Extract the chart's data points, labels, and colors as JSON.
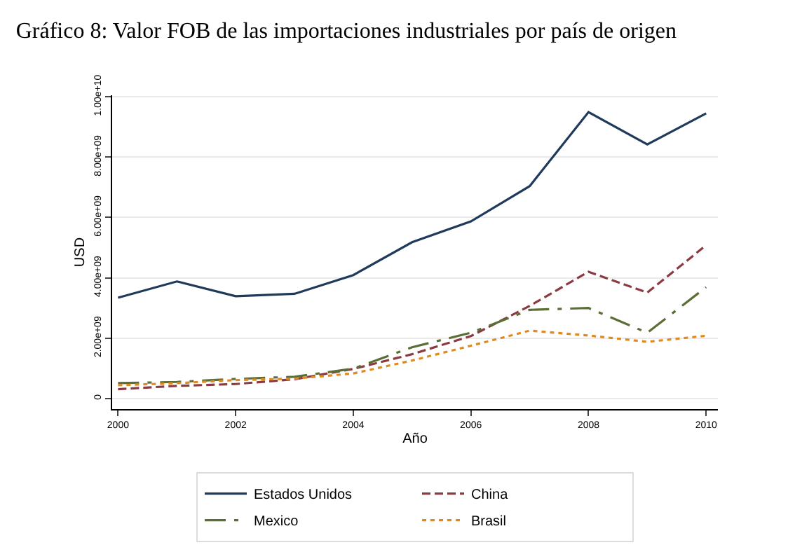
{
  "chart_data": {
    "type": "line",
    "title": "Gráfico 8: Valor FOB de las importaciones industriales por país de origen",
    "xlabel": "Año",
    "ylabel": "USD",
    "x": [
      2000,
      2001,
      2002,
      2003,
      2004,
      2005,
      2006,
      2007,
      2008,
      2009,
      2010
    ],
    "series": [
      {
        "name": "Estados Unidos",
        "color": "#1f3a5a",
        "line_style": "solid",
        "values": [
          3340000000.0,
          3880000000.0,
          3390000000.0,
          3470000000.0,
          4090000000.0,
          5180000000.0,
          5870000000.0,
          7040000000.0,
          9490000000.0,
          8420000000.0,
          9450000000.0
        ]
      },
      {
        "name": "China",
        "color": "#8b3a42",
        "line_style": "dashed",
        "values": [
          310000000.0,
          420000000.0,
          480000000.0,
          640000000.0,
          980000000.0,
          1470000000.0,
          2070000000.0,
          3070000000.0,
          4200000000.0,
          3510000000.0,
          5080000000.0
        ]
      },
      {
        "name": "Mexico",
        "color": "#5a6e35",
        "line_style": "dashdot",
        "values": [
          510000000.0,
          550000000.0,
          650000000.0,
          720000000.0,
          990000000.0,
          1700000000.0,
          2180000000.0,
          2940000000.0,
          3000000000.0,
          2180000000.0,
          3690000000.0
        ]
      },
      {
        "name": "Brasil",
        "color": "#e08a1e",
        "line_style": "dotted",
        "values": [
          440000000.0,
          510000000.0,
          610000000.0,
          660000000.0,
          830000000.0,
          1260000000.0,
          1750000000.0,
          2250000000.0,
          2090000000.0,
          1880000000.0,
          2080000000.0
        ]
      }
    ],
    "xlim": [
      1999.9,
      2010.2
    ],
    "xticks": [
      2000,
      2002,
      2004,
      2006,
      2008,
      2010
    ],
    "ylim": [
      -350000000.0,
      10050000000.0
    ],
    "yticks": [
      0,
      {
        "value": 2000000000.0,
        "label": "2.00e+09"
      },
      {
        "value": 4000000000.0,
        "label": "4.00e+09"
      },
      {
        "value": 6000000000.0,
        "label": "6.00e+09"
      },
      {
        "value": 8000000000.0,
        "label": "8.00e+09"
      },
      {
        "value": 10000000000.0,
        "label": "1.00e+10"
      }
    ],
    "grid": "y",
    "legend": "bottom",
    "marker": "none"
  }
}
